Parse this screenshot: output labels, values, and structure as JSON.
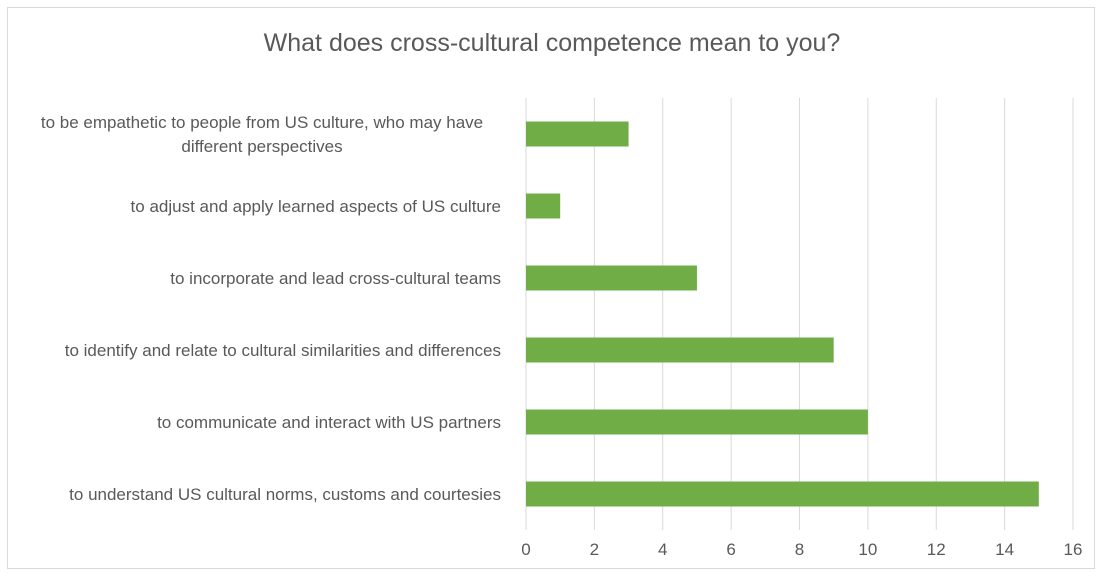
{
  "chart_data": {
    "type": "bar",
    "orientation": "horizontal",
    "title": "What does cross-cultural competence mean to you?",
    "categories": [
      "to be empathetic to people from US culture, who may have different perspectives",
      "to adjust and apply learned aspects of US culture",
      "to incorporate and lead cross-cultural teams",
      "to identify and relate to cultural similarities and differences",
      "to communicate and interact with US partners",
      "to understand US cultural norms, customs and courtesies"
    ],
    "values": [
      3,
      1,
      5,
      9,
      10,
      15
    ],
    "xlim": [
      0,
      16
    ],
    "xticks": [
      "0",
      "2",
      "4",
      "6",
      "8",
      "10",
      "12",
      "14",
      "16"
    ],
    "grid": true,
    "legend": "none",
    "bar_color": "#70ad47",
    "grid_color": "#d9d9d9",
    "text_color": "#595959"
  }
}
